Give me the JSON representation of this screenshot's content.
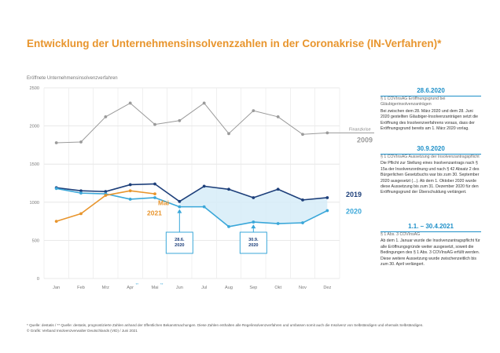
{
  "title": "Entwicklung der Unternehmensinsolvenzzahlen in der Coronakrise (IN-Verfahren)*",
  "chart_data": {
    "type": "line",
    "subtitle": "Eröffnete Unternehmensinsolvenzverfahren",
    "categories": [
      "Jan",
      "Feb",
      "Mrz",
      "Apr",
      "Mai",
      "Jun",
      "Jul",
      "Aug",
      "Sep",
      "Okt",
      "Nov",
      "Dez"
    ],
    "category_marks": [
      "",
      "",
      "",
      "**",
      "**",
      "",
      "",
      "",
      "",
      "",
      "",
      ""
    ],
    "ylim": [
      0,
      2500
    ],
    "yticks": [
      "0",
      "500",
      "1000",
      "1500",
      "2000",
      "2500"
    ],
    "grid": true,
    "series": [
      {
        "name": "2009",
        "color": "#9a9a9a",
        "values": [
          1780,
          1790,
          2120,
          2300,
          2020,
          2070,
          2300,
          1900,
          2200,
          2120,
          1890,
          1910
        ]
      },
      {
        "name": "2019",
        "color": "#1d3f7a",
        "values": [
          1190,
          1150,
          1140,
          1230,
          1240,
          1010,
          1210,
          1170,
          1060,
          1170,
          1030,
          1060
        ]
      },
      {
        "name": "2020",
        "color": "#3aa7d9",
        "values": [
          1180,
          1120,
          1110,
          1040,
          1060,
          940,
          940,
          680,
          740,
          720,
          730,
          890
        ]
      },
      {
        "name": "Mai 2021",
        "color": "#e8952d",
        "values": [
          750,
          850,
          1090,
          1150,
          1110,
          null,
          null,
          null,
          null,
          null,
          null,
          null
        ]
      }
    ],
    "label_finanzkrise": "Finanzkrise",
    "annotations": [
      {
        "text": "28.6.\n2020",
        "month": "Jun",
        "color": "#3aa7d9"
      },
      {
        "text": "30.9.\n2020",
        "month": "Sep",
        "color": "#3aa7d9"
      }
    ]
  },
  "panels": [
    {
      "heading": "28.6.2020",
      "subheading": "§ 1 COVInsAG Eröffnungsgrund bei Gläubigerinsolvenzanträgen",
      "body": "Bei zwischen dem 28. März 2020 und dem 28. Juni 2020 gestellten Gläubiger-Insolvenzanträgen setzt die Eröffnung des Insolvenzverfahrens voraus, dass der Eröffnungsgrund bereits am 1. März 2020 vorlag."
    },
    {
      "heading": "30.9.2020",
      "subheading": "§ 1 COVInsAG Aussetzung der Insolvenzantragspflicht",
      "body": "Die Pflicht zur Stellung eines Insolvenzantrags nach § 15a der Insolvenzordnung und nach § 42 Absatz 2 des Bürgerlichen Gesetzbuchs war bis zum 30. September 2020 ausgesetzt (...). Ab dem 1. Oktober 2020 wurde diese Aussetzung bis zum 31. Dezember 2020 für den Eröffnungsgrund der Überschuldung verlängert."
    },
    {
      "heading": "1.1. – 30.4.2021",
      "subheading": "§ 1 Abs. 3 COVInsAG",
      "body": "Ab dem 1. Januar wurde die Insolvenzantragspflicht für alle Eröffnungsgründe weiter ausgesetzt, soweit die Bedingungen des § 1 Abs. 3 COVInsAG erfüllt werden. Diese weitere Aussetzung wurde zwischenzeitlich bis zum 30. April verlängert."
    }
  ],
  "footnote": {
    "line1": "* Quelle: destatis / ** Quelle: destatis, prognostizierte Zahlen anhand der öffentlichen Bekanntmachungen. Diese Zahlen enthalten alle Regelinsolvenzverfahren und umfassen somit auch die Insolvenz von Selbständigen und ehemals Selbständigen.",
    "line2": "© Grafik: Verband Insolvenzverwalter Deutschlands (VID) / Juni 2021"
  }
}
